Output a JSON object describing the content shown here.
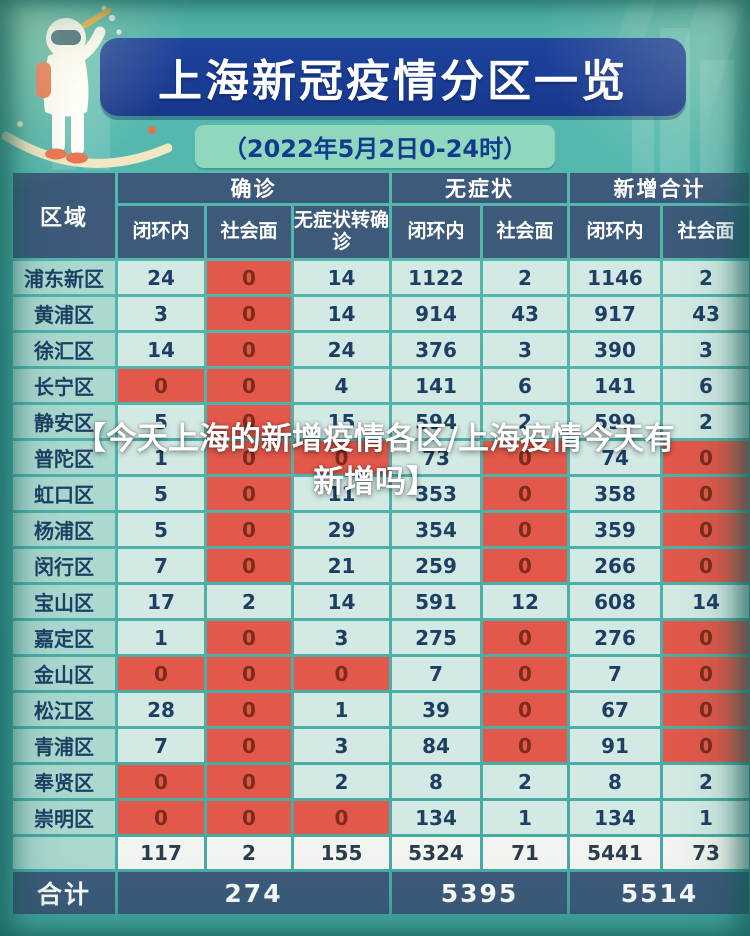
{
  "poster": {
    "title": "上海新冠疫情分区一览",
    "subtitle": "（2022年5月2日0-24时）"
  },
  "overlay": {
    "line1": "【今天上海的新增疫情各区/上海疫情今天有",
    "line2": "新增吗】"
  },
  "chart_data": {
    "type": "table",
    "title": "上海新冠疫情分区一览",
    "subtitle": "（2022年5月2日0-24时）",
    "region_header": "区域",
    "groups": [
      {
        "label": "确诊",
        "cols": [
          "闭环内",
          "社会面",
          "无症状转确诊"
        ]
      },
      {
        "label": "无症状",
        "cols": [
          "闭环内",
          "社会面"
        ]
      },
      {
        "label": "新增合计",
        "cols": [
          "闭环内",
          "社会面"
        ]
      }
    ],
    "rows": [
      {
        "region": "浦东新区",
        "values": [
          24,
          0,
          14,
          1122,
          2,
          1146,
          2
        ]
      },
      {
        "region": "黄浦区",
        "values": [
          3,
          0,
          14,
          914,
          43,
          917,
          43
        ]
      },
      {
        "region": "徐汇区",
        "values": [
          14,
          0,
          24,
          376,
          3,
          390,
          3
        ]
      },
      {
        "region": "长宁区",
        "values": [
          0,
          0,
          4,
          141,
          6,
          141,
          6
        ]
      },
      {
        "region": "静安区",
        "values": [
          5,
          0,
          15,
          594,
          2,
          599,
          2
        ]
      },
      {
        "region": "普陀区",
        "values": [
          1,
          0,
          0,
          73,
          0,
          74,
          0
        ]
      },
      {
        "region": "虹口区",
        "values": [
          5,
          0,
          11,
          353,
          0,
          358,
          0
        ]
      },
      {
        "region": "杨浦区",
        "values": [
          5,
          0,
          29,
          354,
          0,
          359,
          0
        ]
      },
      {
        "region": "闵行区",
        "values": [
          7,
          0,
          21,
          259,
          0,
          266,
          0
        ]
      },
      {
        "region": "宝山区",
        "values": [
          17,
          2,
          14,
          591,
          12,
          608,
          14
        ]
      },
      {
        "region": "嘉定区",
        "values": [
          1,
          0,
          3,
          275,
          0,
          276,
          0
        ]
      },
      {
        "region": "金山区",
        "values": [
          0,
          0,
          0,
          7,
          0,
          7,
          0
        ]
      },
      {
        "region": "松江区",
        "values": [
          28,
          0,
          1,
          39,
          0,
          67,
          0
        ]
      },
      {
        "region": "青浦区",
        "values": [
          7,
          0,
          3,
          84,
          0,
          91,
          0
        ]
      },
      {
        "region": "奉贤区",
        "values": [
          0,
          0,
          2,
          8,
          2,
          8,
          2
        ]
      },
      {
        "region": "崇明区",
        "values": [
          0,
          0,
          0,
          134,
          1,
          134,
          1
        ]
      }
    ],
    "subtotal_values": [
      117,
      2,
      155,
      5324,
      71,
      5441,
      73
    ],
    "total_label": "合计",
    "total_values": [
      274,
      5395,
      5514
    ]
  },
  "colors": {
    "background_teal": "#4fb4ab",
    "banner_blue": "#1b3c94",
    "subtitle_green": "#8fd7bd",
    "header_slate": "#3d5a7a",
    "region_cell_teal": "#abd9d0",
    "value_cell_teal": "#d3eae4",
    "zero_cell_red": "#e2584a",
    "subtotal_bg": "#f1f4ef",
    "overlay_text": "#ffffff"
  },
  "icons": {
    "mascot": "hazmat-sprayer-mascot-icon",
    "decorations": [
      "skyline-decoration",
      "swoosh-decoration",
      "light-ray-decoration"
    ]
  }
}
